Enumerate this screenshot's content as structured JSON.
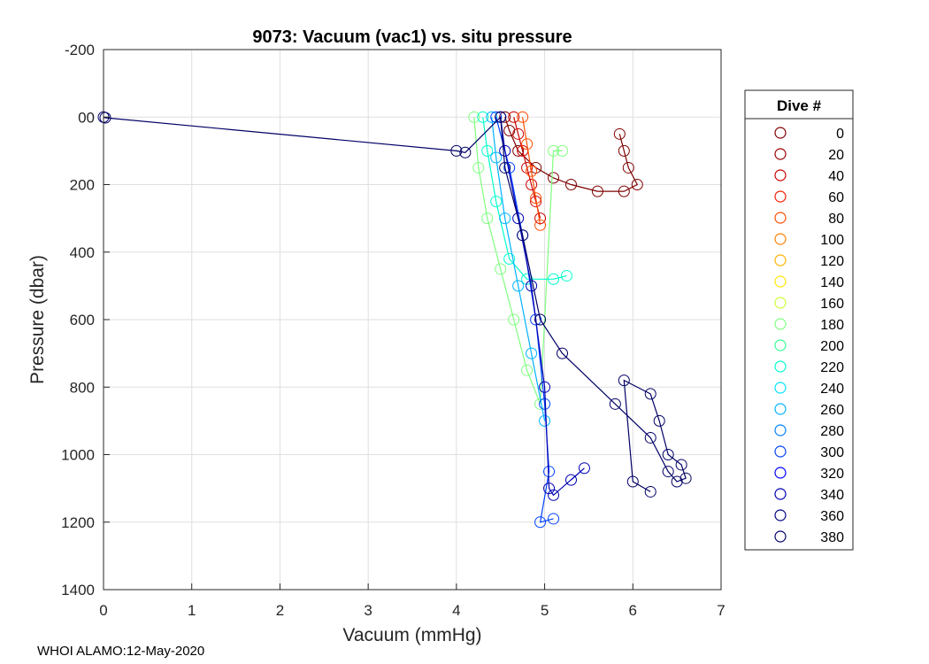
{
  "chart_data": {
    "type": "scatter",
    "title": "9073: Vacuum (vac1) vs. situ pressure",
    "xlabel": "Vacuum (mmHg)",
    "ylabel": "Pressure (dbar)",
    "xlim": [
      0,
      7
    ],
    "ylim": [
      -200,
      1400
    ],
    "y_reversed": true,
    "grid": true,
    "xticks": [
      0,
      1,
      2,
      3,
      4,
      5,
      6,
      7
    ],
    "yticks": [
      -200,
      0,
      200,
      400,
      600,
      800,
      1000,
      1200,
      1400
    ],
    "ytick_labels": [
      "-200",
      "00",
      "200",
      "400",
      "600",
      "800",
      "1000",
      "1200",
      "1400"
    ],
    "legend": {
      "title": "Dive #",
      "placement": "right-outside",
      "entries": [
        "0",
        "20",
        "40",
        "60",
        "80",
        "100",
        "120",
        "140",
        "160",
        "180",
        "200",
        "220",
        "240",
        "260",
        "280",
        "300",
        "320",
        "340",
        "360",
        "380"
      ],
      "colors": [
        "#7f0000",
        "#990000",
        "#cc0000",
        "#ff1a00",
        "#ff4d00",
        "#ff8000",
        "#ffb300",
        "#ffe600",
        "#ccff33",
        "#80ff80",
        "#33ff99",
        "#00ffcc",
        "#00e5ff",
        "#00b3ff",
        "#0080ff",
        "#0040ff",
        "#0000ff",
        "#0000b3",
        "#000080",
        "#000066"
      ]
    },
    "series": [
      {
        "name": "0",
        "color": "#7f0000",
        "points": [
          [
            4.55,
            0
          ],
          [
            4.6,
            40
          ],
          [
            4.7,
            100
          ],
          [
            4.9,
            150
          ],
          [
            5.1,
            180
          ],
          [
            5.3,
            200
          ],
          [
            5.6,
            220
          ],
          [
            5.9,
            220
          ],
          [
            6.05,
            200
          ],
          [
            5.95,
            150
          ],
          [
            5.9,
            100
          ],
          [
            5.85,
            50
          ]
        ]
      },
      {
        "name": "40",
        "color": "#cc0000",
        "points": [
          [
            4.65,
            0
          ],
          [
            4.7,
            50
          ],
          [
            4.75,
            100
          ],
          [
            4.8,
            150
          ],
          [
            4.85,
            200
          ],
          [
            4.9,
            250
          ],
          [
            4.95,
            300
          ]
        ]
      },
      {
        "name": "80",
        "color": "#ff4d00",
        "points": [
          [
            4.75,
            0
          ],
          [
            4.8,
            80
          ],
          [
            4.85,
            160
          ],
          [
            4.9,
            240
          ],
          [
            4.95,
            320
          ]
        ]
      },
      {
        "name": "180",
        "color": "#80ff80",
        "points": [
          [
            4.2,
            0
          ],
          [
            4.25,
            150
          ],
          [
            4.35,
            300
          ],
          [
            4.5,
            450
          ],
          [
            4.65,
            600
          ],
          [
            4.8,
            750
          ],
          [
            4.95,
            850
          ],
          [
            5.1,
            100
          ],
          [
            5.2,
            100
          ]
        ]
      },
      {
        "name": "220",
        "color": "#00ffcc",
        "points": [
          [
            4.3,
            0
          ],
          [
            4.35,
            100
          ],
          [
            4.45,
            250
          ],
          [
            4.6,
            420
          ],
          [
            4.8,
            480
          ],
          [
            5.1,
            480
          ],
          [
            5.25,
            470
          ]
        ]
      },
      {
        "name": "260",
        "color": "#00b3ff",
        "points": [
          [
            4.4,
            0
          ],
          [
            4.45,
            120
          ],
          [
            4.55,
            300
          ],
          [
            4.7,
            500
          ],
          [
            4.85,
            700
          ],
          [
            5.0,
            900
          ]
        ]
      },
      {
        "name": "300",
        "color": "#0040ff",
        "points": [
          [
            4.45,
            0
          ],
          [
            4.6,
            150
          ],
          [
            4.75,
            350
          ],
          [
            4.9,
            600
          ],
          [
            5.0,
            850
          ],
          [
            5.05,
            1050
          ],
          [
            4.95,
            1200
          ],
          [
            5.1,
            1190
          ]
        ]
      },
      {
        "name": "340",
        "color": "#0000b3",
        "points": [
          [
            4.5,
            0
          ],
          [
            4.55,
            100
          ],
          [
            4.7,
            300
          ],
          [
            4.85,
            500
          ],
          [
            5.0,
            800
          ],
          [
            5.05,
            1100
          ],
          [
            5.1,
            1120
          ],
          [
            5.45,
            1040
          ],
          [
            5.3,
            1075
          ]
        ]
      },
      {
        "name": "380",
        "color": "#000066",
        "points": [
          [
            0,
            0
          ],
          [
            0.02,
            2
          ],
          [
            4.0,
            100
          ],
          [
            4.1,
            105
          ],
          [
            4.5,
            0
          ],
          [
            4.55,
            150
          ],
          [
            4.75,
            350
          ],
          [
            4.95,
            600
          ],
          [
            5.2,
            700
          ],
          [
            5.8,
            850
          ],
          [
            6.2,
            950
          ],
          [
            6.4,
            1050
          ],
          [
            6.5,
            1080
          ],
          [
            6.6,
            1070
          ],
          [
            6.55,
            1030
          ],
          [
            6.4,
            1000
          ],
          [
            6.3,
            900
          ],
          [
            6.2,
            820
          ],
          [
            5.9,
            780
          ],
          [
            6.0,
            1080
          ],
          [
            6.2,
            1110
          ]
        ]
      }
    ]
  },
  "footer": {
    "text": "WHOI ALAMO:12-May-2020"
  }
}
